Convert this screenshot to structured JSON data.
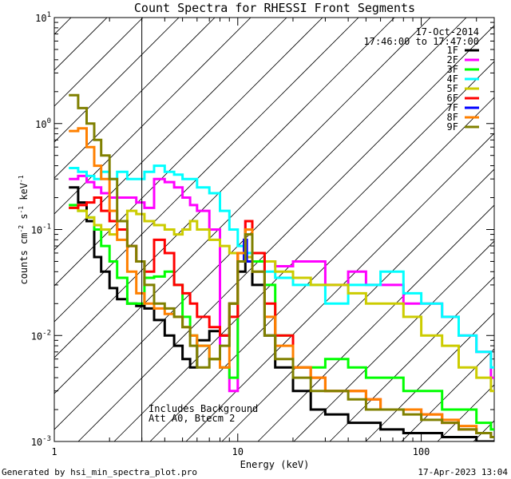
{
  "chart_data": {
    "type": "line",
    "title": "Count Spectra for RHESSI Front Segments",
    "xlabel": "Energy (keV)",
    "ylabel": {
      "base": "counts cm",
      "exp1": "-2",
      "mid": " s",
      "exp2": "-1",
      "tail": " keV",
      "exp3": "-1"
    },
    "x_scale": "log",
    "y_scale": "log",
    "xlim": [
      1,
      250
    ],
    "ylim": [
      0.001,
      10
    ],
    "x_ticks": [
      {
        "value": 1,
        "label": "1"
      },
      {
        "value": 10,
        "label": "10"
      },
      {
        "value": 100,
        "label": "100"
      }
    ],
    "y_ticks": [
      {
        "value": 0.001,
        "base": "10",
        "exp": "-3"
      },
      {
        "value": 0.01,
        "base": "10",
        "exp": "-2"
      },
      {
        "value": 0.1,
        "base": "10",
        "exp": "-1"
      },
      {
        "value": 1,
        "base": "10",
        "exp": "0"
      },
      {
        "value": 10,
        "base": "10",
        "exp": "1"
      }
    ],
    "date_label": "17-Oct-2014",
    "time_label": "17:46:00 to 17:47:00",
    "hatched_region_max_energy": 3,
    "annotations": [
      "Includes Background",
      "Att A0, Btecm 2"
    ],
    "series": [
      {
        "name": "1F",
        "color": "#000000",
        "x": [
          1.2,
          1.35,
          1.5,
          1.65,
          1.8,
          2.0,
          2.2,
          2.5,
          2.8,
          3.1,
          3.5,
          4.0,
          4.5,
          5.0,
          5.5,
          6.0,
          7.0,
          8.0,
          9.0,
          10.0,
          11.0,
          12.0,
          14.0,
          16.0,
          20.0,
          25.0,
          30.0,
          40.0,
          50.0,
          60.0,
          80.0,
          100.0,
          130.0,
          160.0,
          200.0,
          240.0
        ],
        "y": [
          0.25,
          0.18,
          0.12,
          0.055,
          0.04,
          0.028,
          0.022,
          0.02,
          0.019,
          0.018,
          0.014,
          0.01,
          0.008,
          0.006,
          0.005,
          0.009,
          0.011,
          0.01,
          0.02,
          0.04,
          0.1,
          0.03,
          0.01,
          0.005,
          0.003,
          0.002,
          0.0018,
          0.0015,
          0.0015,
          0.0013,
          0.0012,
          0.0012,
          0.0011,
          0.0011,
          0.001,
          0.001
        ]
      },
      {
        "name": "2F",
        "color": "#ff00ff",
        "x": [
          1.2,
          1.35,
          1.5,
          1.65,
          1.8,
          2.0,
          2.2,
          2.5,
          2.8,
          3.1,
          3.5,
          4.0,
          4.5,
          5.0,
          5.5,
          6.0,
          7.0,
          8.0,
          9.0,
          10.0,
          11.0,
          12.0,
          14.0,
          16.0,
          20.0,
          25.0,
          30.0,
          40.0,
          50.0,
          60.0,
          80.0,
          100.0,
          130.0,
          160.0,
          200.0,
          240.0
        ],
        "y": [
          0.3,
          0.32,
          0.28,
          0.25,
          0.22,
          0.2,
          0.2,
          0.2,
          0.18,
          0.16,
          0.3,
          0.28,
          0.25,
          0.2,
          0.17,
          0.15,
          0.1,
          0.005,
          0.003,
          0.06,
          0.12,
          0.06,
          0.05,
          0.045,
          0.05,
          0.05,
          0.03,
          0.04,
          0.03,
          0.03,
          0.02,
          0.02,
          0.015,
          0.01,
          0.007,
          0.004
        ]
      },
      {
        "name": "3F",
        "color": "#00ff00",
        "x": [
          1.2,
          1.35,
          1.5,
          1.65,
          1.8,
          2.0,
          2.2,
          2.5,
          2.8,
          3.1,
          3.5,
          4.0,
          4.5,
          5.0,
          5.5,
          6.0,
          7.0,
          8.0,
          9.0,
          10.0,
          11.0,
          12.0,
          14.0,
          16.0,
          20.0,
          25.0,
          30.0,
          40.0,
          50.0,
          60.0,
          80.0,
          100.0,
          130.0,
          160.0,
          200.0,
          240.0
        ],
        "y": [
          0.17,
          0.15,
          0.13,
          0.1,
          0.07,
          0.05,
          0.035,
          0.02,
          0.02,
          0.035,
          0.036,
          0.04,
          0.03,
          0.015,
          0.01,
          0.008,
          0.006,
          0.005,
          0.004,
          0.05,
          0.1,
          0.05,
          0.03,
          0.01,
          0.005,
          0.005,
          0.006,
          0.005,
          0.004,
          0.004,
          0.003,
          0.003,
          0.002,
          0.002,
          0.0015,
          0.0013
        ]
      },
      {
        "name": "4F",
        "color": "#00ffff",
        "x": [
          1.2,
          1.35,
          1.5,
          1.65,
          1.8,
          2.0,
          2.2,
          2.5,
          2.8,
          3.1,
          3.5,
          4.0,
          4.5,
          5.0,
          5.5,
          6.0,
          7.0,
          8.0,
          9.0,
          10.0,
          11.0,
          12.0,
          14.0,
          16.0,
          20.0,
          25.0,
          30.0,
          40.0,
          50.0,
          60.0,
          80.0,
          100.0,
          130.0,
          160.0,
          200.0,
          240.0
        ],
        "y": [
          0.38,
          0.35,
          0.32,
          0.3,
          0.35,
          0.3,
          0.35,
          0.3,
          0.3,
          0.35,
          0.4,
          0.35,
          0.33,
          0.3,
          0.3,
          0.25,
          0.22,
          0.15,
          0.1,
          0.07,
          0.06,
          0.06,
          0.04,
          0.035,
          0.03,
          0.03,
          0.02,
          0.03,
          0.03,
          0.04,
          0.025,
          0.02,
          0.015,
          0.01,
          0.007,
          0.005
        ]
      },
      {
        "name": "5F",
        "color": "#cccc00",
        "x": [
          1.2,
          1.35,
          1.5,
          1.65,
          1.8,
          2.0,
          2.2,
          2.5,
          2.8,
          3.1,
          3.5,
          4.0,
          4.5,
          5.0,
          5.5,
          6.0,
          7.0,
          8.0,
          9.0,
          10.0,
          11.0,
          12.0,
          14.0,
          16.0,
          20.0,
          25.0,
          30.0,
          40.0,
          50.0,
          60.0,
          80.0,
          100.0,
          130.0,
          160.0,
          200.0,
          240.0
        ],
        "y": [
          0.16,
          0.15,
          0.13,
          0.11,
          0.1,
          0.09,
          0.12,
          0.15,
          0.14,
          0.12,
          0.11,
          0.1,
          0.09,
          0.1,
          0.12,
          0.1,
          0.08,
          0.07,
          0.06,
          0.05,
          0.055,
          0.06,
          0.05,
          0.04,
          0.035,
          0.03,
          0.03,
          0.025,
          0.02,
          0.02,
          0.015,
          0.01,
          0.008,
          0.005,
          0.004,
          0.003
        ]
      },
      {
        "name": "6F",
        "color": "#ff0000",
        "x": [
          1.2,
          1.35,
          1.5,
          1.65,
          1.8,
          2.0,
          2.2,
          2.5,
          2.8,
          3.1,
          3.5,
          4.0,
          4.5,
          5.0,
          5.5,
          6.0,
          7.0,
          8.0,
          9.0,
          10.0,
          11.0,
          12.0,
          14.0,
          16.0,
          20.0,
          25.0,
          30.0,
          40.0,
          50.0,
          60.0,
          80.0,
          100.0,
          130.0,
          160.0,
          200.0,
          240.0
        ],
        "y": [
          0.16,
          0.17,
          0.18,
          0.2,
          0.15,
          0.12,
          0.1,
          0.07,
          0.05,
          0.04,
          0.08,
          0.06,
          0.03,
          0.025,
          0.02,
          0.015,
          0.012,
          0.01,
          0.015,
          0.06,
          0.12,
          0.06,
          0.02,
          0.01,
          0.005,
          0.004,
          0.003,
          0.003,
          0.0025,
          0.002,
          0.002,
          0.0018,
          0.0015,
          0.0013,
          0.0012,
          0.0011
        ]
      },
      {
        "name": "7F",
        "color": "#0000ff",
        "x": [
          10.5,
          10.8,
          11.2
        ],
        "y": [
          0.05,
          0.08,
          0.05
        ]
      },
      {
        "name": "8F",
        "color": "#ff8000",
        "x": [
          1.2,
          1.35,
          1.5,
          1.65,
          1.8,
          2.0,
          2.2,
          2.5,
          2.8,
          3.1,
          3.5,
          4.0,
          4.5,
          5.0,
          5.5,
          6.0,
          7.0,
          8.0,
          9.0,
          10.0,
          11.0,
          12.0,
          14.0,
          16.0,
          20.0,
          25.0,
          30.0,
          40.0,
          50.0,
          60.0,
          80.0,
          100.0,
          130.0,
          160.0,
          200.0,
          240.0
        ],
        "y": [
          0.85,
          0.9,
          0.6,
          0.4,
          0.3,
          0.15,
          0.08,
          0.04,
          0.025,
          0.02,
          0.018,
          0.016,
          0.015,
          0.012,
          0.01,
          0.008,
          0.006,
          0.005,
          0.02,
          0.06,
          0.1,
          0.04,
          0.015,
          0.008,
          0.005,
          0.004,
          0.003,
          0.003,
          0.0025,
          0.002,
          0.002,
          0.0018,
          0.0016,
          0.0014,
          0.0012,
          0.0011
        ]
      },
      {
        "name": "9F",
        "color": "#808000",
        "x": [
          1.2,
          1.35,
          1.5,
          1.65,
          1.8,
          2.0,
          2.2,
          2.5,
          2.8,
          3.1,
          3.5,
          4.0,
          4.5,
          5.0,
          5.5,
          6.0,
          7.0,
          8.0,
          9.0,
          10.0,
          11.0,
          12.0,
          14.0,
          16.0,
          20.0,
          25.0,
          30.0,
          40.0,
          50.0,
          60.0,
          80.0,
          100.0,
          130.0,
          160.0,
          200.0,
          240.0
        ],
        "y": [
          1.85,
          1.4,
          1.0,
          0.7,
          0.5,
          0.3,
          0.12,
          0.07,
          0.05,
          0.03,
          0.02,
          0.018,
          0.015,
          0.012,
          0.008,
          0.005,
          0.006,
          0.008,
          0.02,
          0.05,
          0.09,
          0.04,
          0.01,
          0.006,
          0.004,
          0.003,
          0.003,
          0.0025,
          0.002,
          0.002,
          0.0018,
          0.0016,
          0.0015,
          0.0013,
          0.0012,
          0.0011
        ]
      }
    ]
  },
  "footer": {
    "generated_by": "Generated by hsi_min_spectra_plot.pro",
    "timestamp": "17-Apr-2023 13:04"
  }
}
